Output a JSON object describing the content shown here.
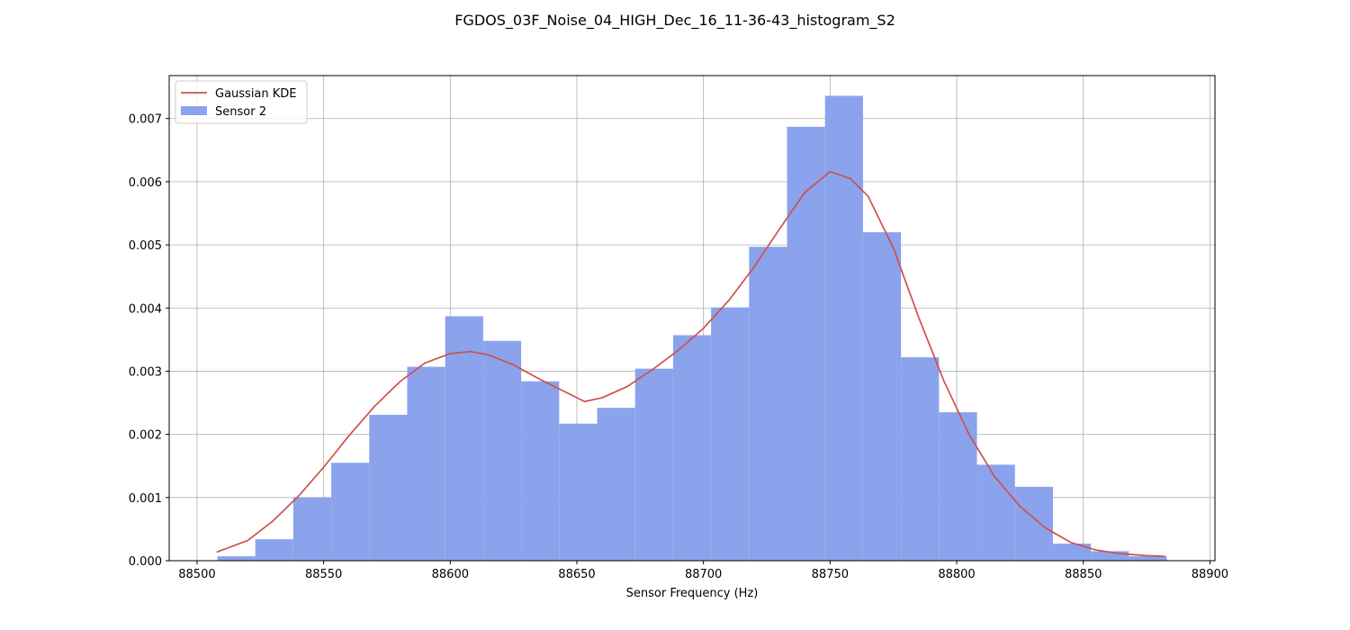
{
  "chart_data": {
    "type": "histogram",
    "title": "FGDOS_03F_Noise_04_HIGH_Dec_16_11-36-43_histogram_S2",
    "xlabel": "Sensor Frequency (Hz)",
    "ylabel": "",
    "xlim": [
      88489,
      88902
    ],
    "ylim": [
      0,
      0.00768
    ],
    "xticks": [
      88500,
      88550,
      88600,
      88650,
      88700,
      88750,
      88800,
      88850,
      88900
    ],
    "yticks": [
      0.0,
      0.001,
      0.002,
      0.003,
      0.004,
      0.005,
      0.006,
      0.007
    ],
    "xtick_labels": [
      "88500",
      "88550",
      "88600",
      "88650",
      "88700",
      "88750",
      "88800",
      "88850",
      "88900"
    ],
    "ytick_labels": [
      "0.000",
      "0.001",
      "0.002",
      "0.003",
      "0.004",
      "0.005",
      "0.006",
      "0.007"
    ],
    "grid": true,
    "legend_position": "top-left",
    "series": [
      {
        "name": "Sensor 2",
        "kind": "histogram",
        "color": "#8aa3ec",
        "bin_edges": [
          88508,
          88523,
          88538,
          88553,
          88568,
          88583,
          88598,
          88613,
          88628,
          88643,
          88658,
          88673,
          88688,
          88703,
          88718,
          88733,
          88748,
          88763,
          88778,
          88793,
          88808,
          88823,
          88838,
          88853,
          88868,
          88883
        ],
        "values": [
          7e-05,
          0.00034,
          0.001,
          0.00155,
          0.00231,
          0.00307,
          0.00387,
          0.00348,
          0.00284,
          0.00217,
          0.00242,
          0.00304,
          0.00357,
          0.00401,
          0.00497,
          0.00687,
          0.00736,
          0.0052,
          0.00322,
          0.00235,
          0.00152,
          0.00117,
          0.00027,
          0.00015,
          7e-05
        ]
      },
      {
        "name": "Gaussian KDE",
        "kind": "line",
        "color": "#d0504c",
        "x": [
          88508,
          88520,
          88530,
          88540,
          88550,
          88560,
          88570,
          88580,
          88590,
          88600,
          88608,
          88615,
          88625,
          88635,
          88645,
          88653,
          88660,
          88670,
          88680,
          88690,
          88700,
          88710,
          88720,
          88730,
          88740,
          88750,
          88758,
          88765,
          88775,
          88785,
          88795,
          88805,
          88815,
          88825,
          88835,
          88845,
          88855,
          88865,
          88875,
          88882
        ],
        "y": [
          0.00014,
          0.00032,
          0.00063,
          0.00102,
          0.00148,
          0.00198,
          0.00244,
          0.00283,
          0.00313,
          0.00328,
          0.00331,
          0.00326,
          0.0031,
          0.00288,
          0.00268,
          0.00252,
          0.00258,
          0.00276,
          0.00303,
          0.00333,
          0.00368,
          0.00412,
          0.00465,
          0.00525,
          0.00583,
          0.00616,
          0.00605,
          0.00577,
          0.00495,
          0.00385,
          0.00284,
          0.00199,
          0.00133,
          0.00086,
          0.00052,
          0.00029,
          0.00017,
          0.00011,
          8e-05,
          7e-05
        ]
      }
    ]
  }
}
